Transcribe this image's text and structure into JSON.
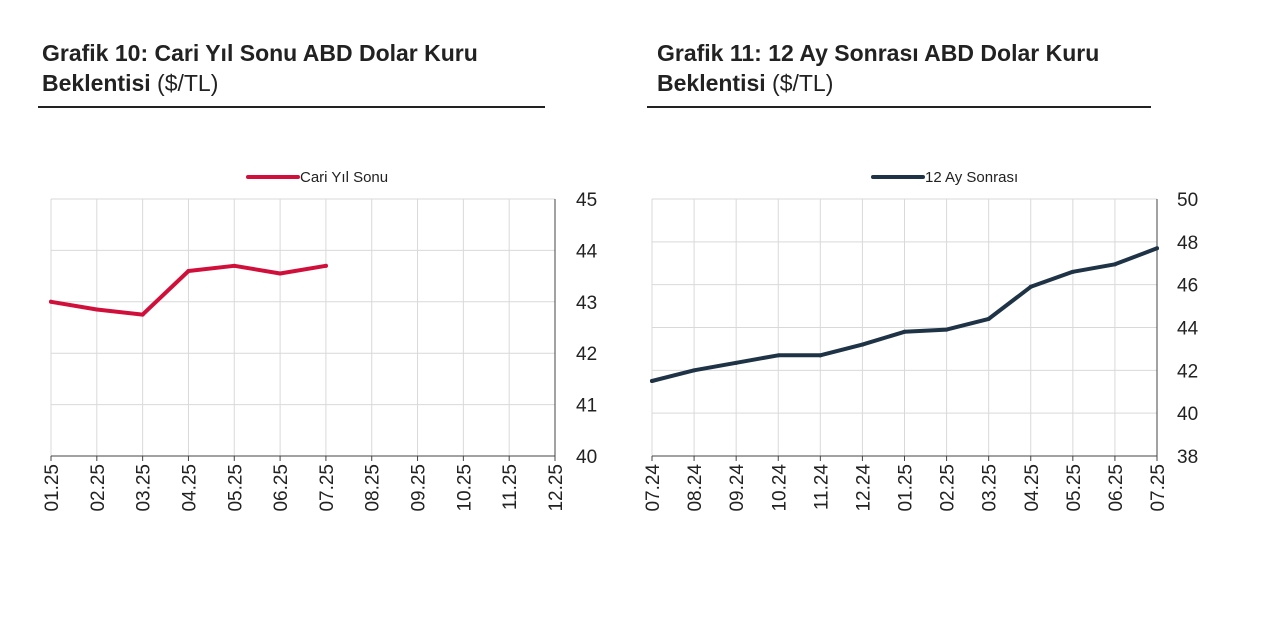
{
  "charts": [
    {
      "title_bold": "Grafik 10: Cari Yıl Sonu ABD Dolar Kuru Beklentisi",
      "title_unit": "($/TL)",
      "color": "#d0103a",
      "chart_data": {
        "type": "line",
        "categories": [
          "01.25",
          "02.25",
          "03.25",
          "04.25",
          "05.25",
          "06.25",
          "07.25",
          "08.25",
          "09.25",
          "10.25",
          "11.25",
          "12.25"
        ],
        "series": [
          {
            "name": "Cari Yıl Sonu",
            "values": [
              43.0,
              42.85,
              42.75,
              43.6,
              43.7,
              43.55,
              43.7,
              null,
              null,
              null,
              null,
              null
            ]
          }
        ],
        "yticks": [
          "45",
          "44",
          "43",
          "42",
          "41",
          "40"
        ],
        "ylim": [
          40,
          45
        ],
        "y_axis_side": "right",
        "grid": true,
        "legend": "top-center"
      }
    },
    {
      "title_bold": "Grafik 11: 12 Ay Sonrası ABD Dolar Kuru Beklentisi",
      "title_unit": "($/TL)",
      "color": "#1f3347",
      "chart_data": {
        "type": "line",
        "categories": [
          "07.24",
          "08.24",
          "09.24",
          "10.24",
          "11.24",
          "12.24",
          "01.25",
          "02.25",
          "03.25",
          "04.25",
          "05.25",
          "06.25",
          "07.25"
        ],
        "series": [
          {
            "name": "12 Ay Sonrası",
            "values": [
              41.5,
              42.0,
              42.35,
              42.7,
              42.7,
              43.2,
              43.8,
              43.9,
              44.4,
              45.9,
              46.6,
              46.95,
              47.7
            ]
          }
        ],
        "yticks": [
          "50",
          "48",
          "46",
          "44",
          "42",
          "40",
          "38"
        ],
        "ylim": [
          38,
          50
        ],
        "y_axis_side": "right",
        "grid": true,
        "legend": "top-center"
      }
    }
  ]
}
